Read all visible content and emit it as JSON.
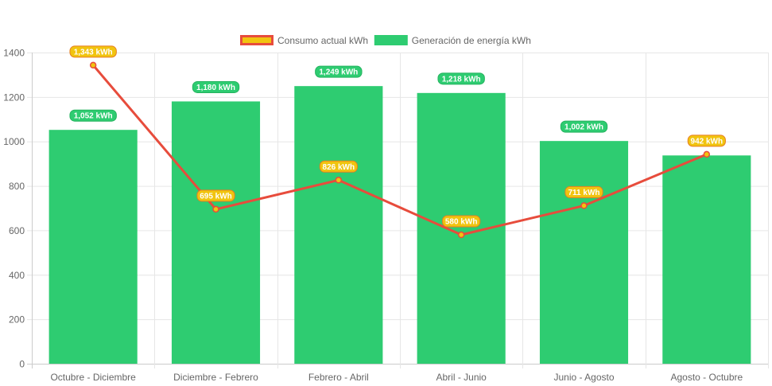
{
  "chart_data": {
    "type": "bar",
    "categories": [
      "Octubre - Diciembre",
      "Diciembre - Febrero",
      "Febrero - Abril",
      "Abril - Junio",
      "Junio - Agosto",
      "Agosto - Octubre"
    ],
    "series": [
      {
        "name": "Generación de energía kWh",
        "type": "bar",
        "values": [
          1052,
          1180,
          1249,
          1218,
          1002,
          937
        ],
        "labels": [
          "1,052 kWh",
          "1,180 kWh",
          "1,249 kWh",
          "1,218 kWh",
          "1,002 kWh",
          null
        ],
        "color": "#2ecc71"
      },
      {
        "name": "Consumo actual kWh",
        "type": "line",
        "values": [
          1343,
          695,
          826,
          580,
          711,
          942
        ],
        "labels": [
          "1,343 kWh",
          "695 kWh",
          "826 kWh",
          "580 kWh",
          "711 kWh",
          "942 kWh"
        ],
        "color": "#e74c3c",
        "fill_color": "#f1c40f"
      }
    ],
    "ylim": [
      0,
      1400
    ],
    "yticks": [
      0,
      200,
      400,
      600,
      800,
      1000,
      1200,
      1400
    ],
    "grid": true,
    "legend_position": "top-center"
  }
}
